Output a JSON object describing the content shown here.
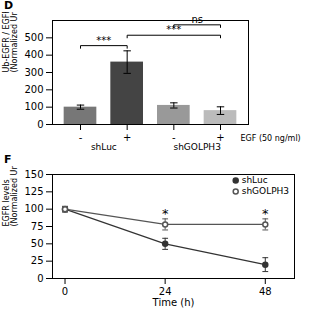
{
  "chart_data": [
    {
      "type": "bar",
      "title": "D",
      "categories": [
        "-",
        "+",
        "-",
        "+"
      ],
      "values": [
        100,
        360,
        110,
        80
      ],
      "errors": [
        12,
        65,
        15,
        22
      ],
      "colors": [
        "#777777",
        "#444444",
        "#999999",
        "#bbbbbb"
      ],
      "ylabel": "Ub-EGFR / EGFR\n(Normalized Units)",
      "xlabel": "EGF (50 ng/ml)",
      "ylim": [
        0,
        600
      ],
      "yticks": [
        0,
        100,
        200,
        300,
        400,
        500
      ],
      "groups": [
        {
          "name": "shLuc",
          "categories": [
            0,
            1
          ]
        },
        {
          "name": "shGOLPH3",
          "categories": [
            2,
            3
          ]
        }
      ],
      "annotations": [
        {
          "text": "***",
          "from": 0,
          "to": 1
        },
        {
          "text": "***",
          "from": 1,
          "to": 3
        },
        {
          "text": "ns",
          "from": 2,
          "to": 3
        }
      ]
    },
    {
      "type": "line",
      "title": "F",
      "x": [
        0,
        24,
        48
      ],
      "xlim": [
        -3,
        55
      ],
      "xticks": [
        0,
        24,
        48
      ],
      "ylim": [
        0,
        150
      ],
      "yticks": [
        0,
        25,
        50,
        75,
        100,
        125,
        150
      ],
      "xlabel": "Time (h)",
      "ylabel": "EGFR levels\n(Normalized Units)",
      "legend": "upper right",
      "series": [
        {
          "name": "shLuc",
          "color": "#333333",
          "marker": "circle",
          "values": [
            100,
            50,
            20
          ],
          "errors": [
            4,
            8,
            10
          ]
        },
        {
          "name": "shGOLPH3",
          "color": "#555555",
          "marker": "open_circle",
          "values": [
            100,
            78,
            78
          ],
          "errors": [
            4,
            8,
            8
          ],
          "annotations": [
            {
              "x": 24,
              "text": "*"
            },
            {
              "x": 48,
              "text": "*"
            }
          ]
        }
      ]
    }
  ]
}
